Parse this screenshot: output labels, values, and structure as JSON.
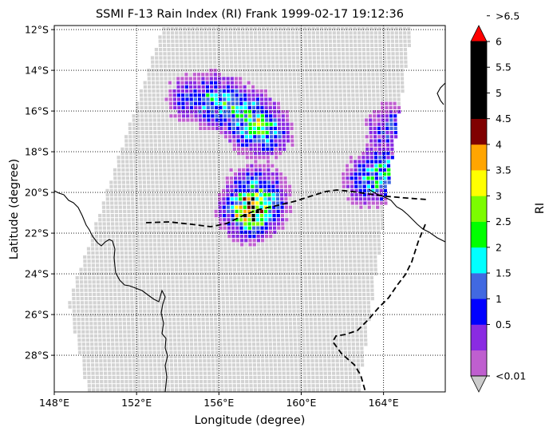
{
  "chart_data": {
    "type": "map",
    "title": "SSMI F-13 Rain Index (RI) Frank 1999-02-17 19:12:36",
    "xlabel": "Longitude (degree)",
    "ylabel": "Latitude (degree)",
    "xlim": [
      148,
      167
    ],
    "ylim": [
      -29.8,
      -11.8
    ],
    "x_ticks": [
      {
        "value": 148,
        "label": "148°E"
      },
      {
        "value": 152,
        "label": "152°E"
      },
      {
        "value": 156,
        "label": "156°E"
      },
      {
        "value": 160,
        "label": "160°E"
      },
      {
        "value": 164,
        "label": "164°E"
      }
    ],
    "y_ticks": [
      {
        "value": -12,
        "label": "12°S"
      },
      {
        "value": -14,
        "label": "14°S"
      },
      {
        "value": -16,
        "label": "16°S"
      },
      {
        "value": -18,
        "label": "18°S"
      },
      {
        "value": -20,
        "label": "20°S"
      },
      {
        "value": -22,
        "label": "22°S"
      },
      {
        "value": -24,
        "label": "24°S"
      },
      {
        "value": -26,
        "label": "26°S"
      },
      {
        "value": -28,
        "label": "28°S"
      }
    ],
    "grid": "dotted",
    "swath": {
      "corners_lonlat": [
        [
          153.3,
          -11.8
        ],
        [
          165.4,
          -11.8
        ],
        [
          162.8,
          -29.8
        ],
        [
          149.6,
          -29.8
        ],
        [
          148.7,
          -25.4
        ]
      ],
      "no_rain_color": "#d3d3d3"
    },
    "rain_cells": [
      {
        "lon": 154.6,
        "lat": -15.3,
        "ri": 1.2
      },
      {
        "lon": 155.6,
        "lat": -15.4,
        "ri": 2.2
      },
      {
        "lon": 156.3,
        "lat": -15.6,
        "ri": 2.4
      },
      {
        "lon": 157.3,
        "lat": -16.2,
        "ri": 2.7
      },
      {
        "lon": 157.7,
        "lat": -16.6,
        "ri": 3.2
      },
      {
        "lon": 158.1,
        "lat": -16.9,
        "ri": 2.3
      },
      {
        "lon": 157.6,
        "lat": -19.9,
        "ri": 2.2
      },
      {
        "lon": 157.9,
        "lat": -20.1,
        "ri": 2.7
      },
      {
        "lon": 157.9,
        "lat": -20.3,
        "ri": 3.2
      },
      {
        "lon": 157.5,
        "lat": -20.8,
        "ri": 5.0
      },
      {
        "lon": 163.4,
        "lat": -19.3,
        "ri": 2.2
      },
      {
        "lon": 163.8,
        "lat": -18.9,
        "ri": 2.3
      },
      {
        "lon": 164.2,
        "lat": -16.8,
        "ri": 1.3
      }
    ],
    "colorbar": {
      "label": "RI",
      "bins": [
        {
          "label": "<0.01",
          "color": "#cccccc"
        },
        {
          "label": "",
          "color": "#bf5fcf"
        },
        {
          "label": "0.5",
          "color": "#8a2be2"
        },
        {
          "label": "1",
          "color": "#0000ff"
        },
        {
          "label": "1.5",
          "color": "#4169e1"
        },
        {
          "label": "2",
          "color": "#00ffff"
        },
        {
          "label": "2.5",
          "color": "#00ff00"
        },
        {
          "label": "3",
          "color": "#7cfc00"
        },
        {
          "label": "3.5",
          "color": "#ffff00"
        },
        {
          "label": "4",
          "color": "#ffa500"
        },
        {
          "label": "4.5",
          "color": "#800000"
        },
        {
          "label": "5",
          "color": "#000000"
        },
        {
          "label": "5.5",
          "color": "#000000"
        },
        {
          "label": "6",
          "color": "#000000"
        },
        {
          "label": ">6.5",
          "color": "#ff0000"
        }
      ]
    }
  }
}
